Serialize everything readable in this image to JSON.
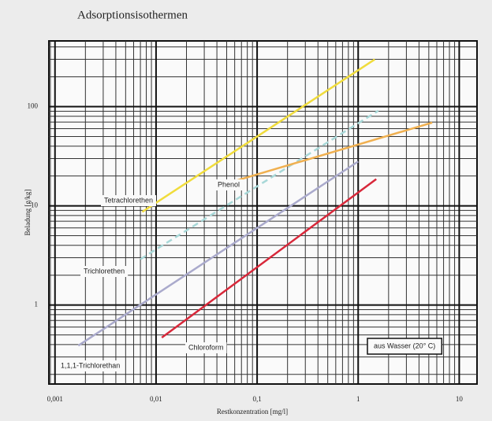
{
  "chart_data": {
    "type": "line",
    "title": "Adsorptionsisothermen",
    "xlabel": "Restkonzentration [mg/l]",
    "ylabel": "Beladung [g/kg]",
    "note": "aus Wasser (20° C)",
    "xscale": "log",
    "yscale": "log",
    "grid": true,
    "xlim": [
      0.00087,
      15
    ],
    "ylim": [
      0.16,
      460
    ],
    "xticks": [
      {
        "value": 0.001,
        "label": "0,001"
      },
      {
        "value": 0.01,
        "label": "0,01"
      },
      {
        "value": 0.1,
        "label": "0,1"
      },
      1,
      10
    ],
    "yticks": [
      1,
      10,
      100
    ],
    "series": [
      {
        "name": "Tetrachlorethen",
        "color": "#f0dc3c",
        "x": [
          0.0073,
          1.46
        ],
        "values": [
          8.7,
          300
        ]
      },
      {
        "name": "Trichlorethen",
        "color": "#a8d8d8",
        "dashed": true,
        "x": [
          0.007,
          1.58
        ],
        "values": [
          2.9,
          91
        ]
      },
      {
        "name": "Phenol",
        "color": "#f0b050",
        "x": [
          0.045,
          5.4
        ],
        "values": [
          16.3,
          69
        ]
      },
      {
        "name": "1,1,1-Trichlorethan",
        "color": "#aaaacc",
        "x": [
          0.0017,
          1.0
        ],
        "values": [
          0.39,
          28
        ]
      },
      {
        "name": "Chloroform",
        "color": "#d8283a",
        "x": [
          0.0114,
          1.51
        ],
        "values": [
          0.47,
          18.6
        ]
      }
    ]
  }
}
